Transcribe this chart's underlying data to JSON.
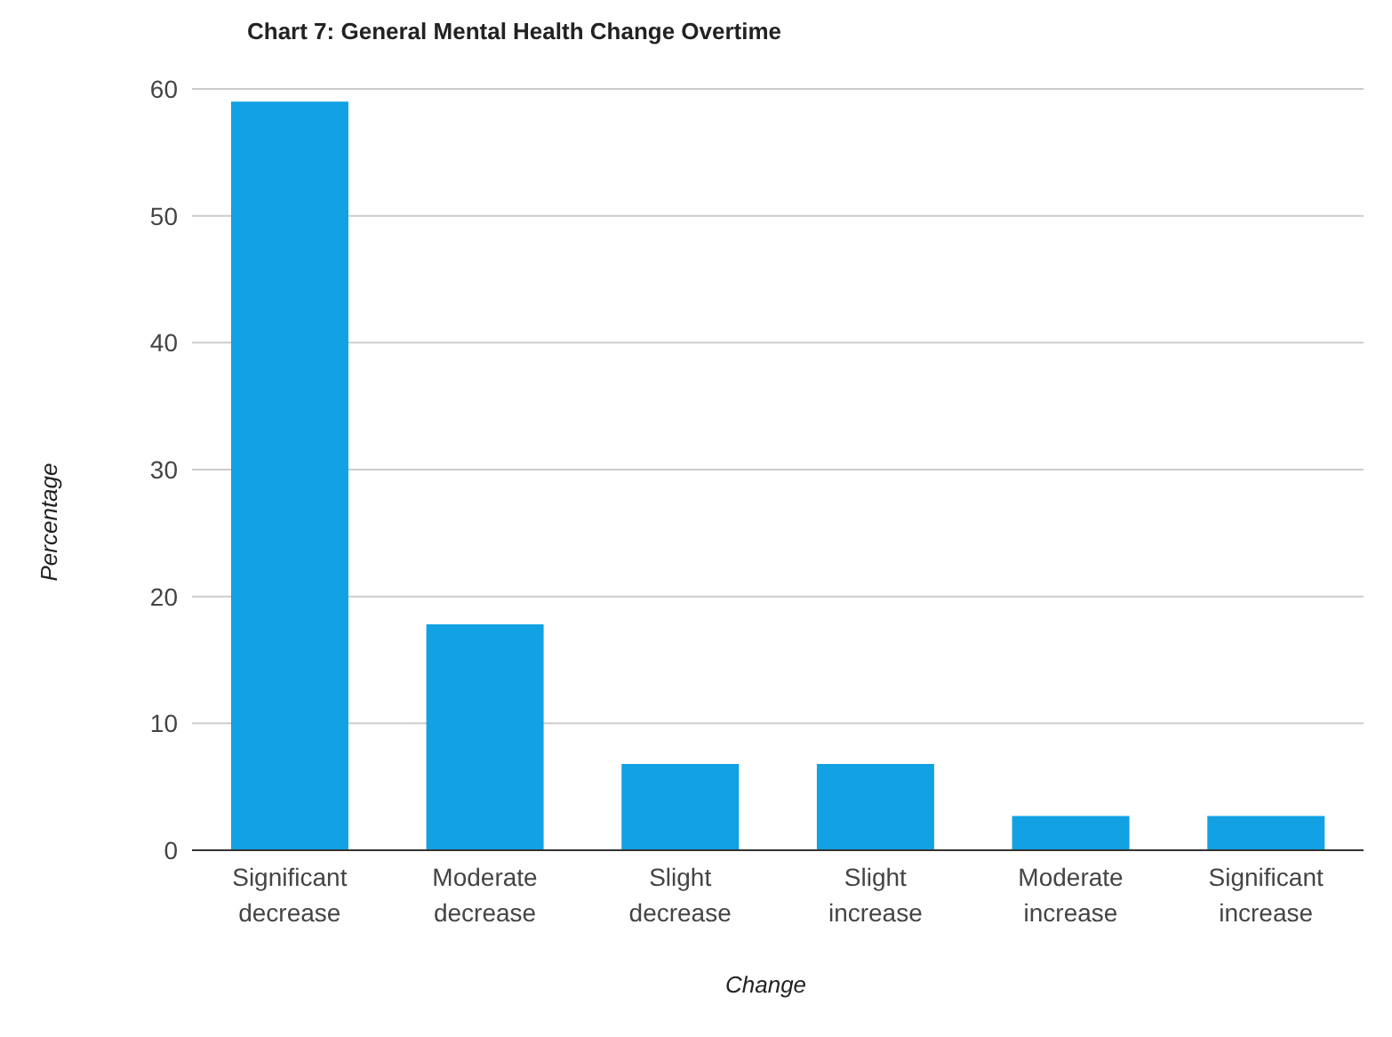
{
  "chart_data": {
    "type": "bar",
    "title": "Chart 7: General Mental Health Change Overtime",
    "xlabel": "Change",
    "ylabel": "Percentage",
    "categories": [
      "Significant decrease",
      "Moderate decrease",
      "Slight decrease",
      "Slight increase",
      "Moderate increase",
      "Significant increase"
    ],
    "values": [
      59,
      17.8,
      6.8,
      6.8,
      2.7,
      2.7
    ],
    "color": "#12a1e3",
    "ylim": [
      0,
      60
    ],
    "yticks": [
      0,
      10,
      20,
      30,
      40,
      50,
      60
    ],
    "grid": "y"
  }
}
